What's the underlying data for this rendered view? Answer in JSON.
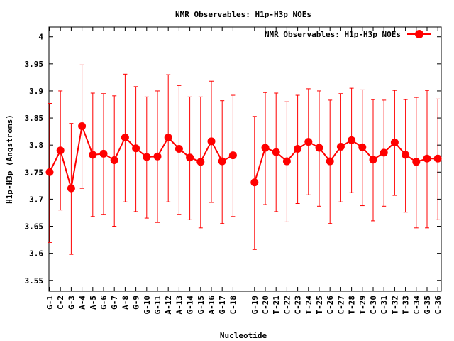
{
  "chart_data": {
    "type": "line",
    "title": "NMR Observables: H1p-H3p NOEs",
    "xlabel": "Nucleotide",
    "ylabel": "H1p-H3p (Angstroms)",
    "ylim": [
      3.53,
      4.018
    ],
    "yticks": [
      3.55,
      3.6,
      3.65,
      3.7,
      3.75,
      3.8,
      3.85,
      3.9,
      3.95,
      4
    ],
    "ytick_labels": [
      "3.55",
      "3.6",
      "3.65",
      "3.7",
      "3.75",
      "3.8",
      "3.85",
      "3.9",
      "3.95",
      "4"
    ],
    "legend": {
      "label": "NMR Observables: H1p-H3p NOEs",
      "placement": "top-right"
    },
    "color": "#ff0000",
    "series": [
      {
        "name": "NMR Observables: H1p-H3p NOEs",
        "segments": [
          {
            "categories": [
              "G-1",
              "C-2",
              "G-3",
              "A-4",
              "A-5",
              "G-6",
              "G-7",
              "A-8",
              "G-9",
              "G-10",
              "G-11",
              "A-12",
              "A-13",
              "G-14",
              "G-15",
              "A-16",
              "G-17",
              "C-18"
            ],
            "values": [
              3.75,
              3.79,
              3.72,
              3.835,
              3.782,
              3.784,
              3.772,
              3.814,
              3.794,
              3.778,
              3.779,
              3.814,
              3.793,
              3.777,
              3.769,
              3.807,
              3.77,
              3.781
            ],
            "err_low": [
              3.62,
              3.68,
              3.598,
              3.72,
              3.668,
              3.672,
              3.65,
              3.695,
              3.677,
              3.665,
              3.657,
              3.695,
              3.672,
              3.662,
              3.647,
              3.694,
              3.655,
              3.668
            ],
            "err_high": [
              3.877,
              3.9,
              3.84,
              3.948,
              3.896,
              3.895,
              3.891,
              3.931,
              3.908,
              3.889,
              3.9,
              3.93,
              3.91,
              3.889,
              3.889,
              3.918,
              3.882,
              3.892
            ]
          },
          {
            "categories": [
              "G-19",
              "C-20",
              "T-21",
              "C-22",
              "C-23",
              "T-24",
              "T-25",
              "C-26",
              "C-27",
              "T-28",
              "T-29",
              "C-30",
              "C-31",
              "T-32",
              "T-33",
              "C-34",
              "G-35",
              "C-36"
            ],
            "values": [
              3.731,
              3.795,
              3.787,
              3.77,
              3.793,
              3.806,
              3.795,
              3.77,
              3.797,
              3.809,
              3.796,
              3.773,
              3.786,
              3.805,
              3.782,
              3.769,
              3.775,
              3.775
            ],
            "err_low": [
              3.607,
              3.69,
              3.677,
              3.658,
              3.692,
              3.708,
              3.687,
              3.655,
              3.695,
              3.712,
              3.688,
              3.66,
              3.687,
              3.707,
              3.676,
              3.647,
              3.647,
              3.662
            ],
            "err_high": [
              3.853,
              3.897,
              3.896,
              3.88,
              3.892,
              3.904,
              3.9,
              3.883,
              3.895,
              3.905,
              3.902,
              3.884,
              3.883,
              3.901,
              3.884,
              3.888,
              3.901,
              3.885
            ]
          }
        ]
      }
    ]
  }
}
